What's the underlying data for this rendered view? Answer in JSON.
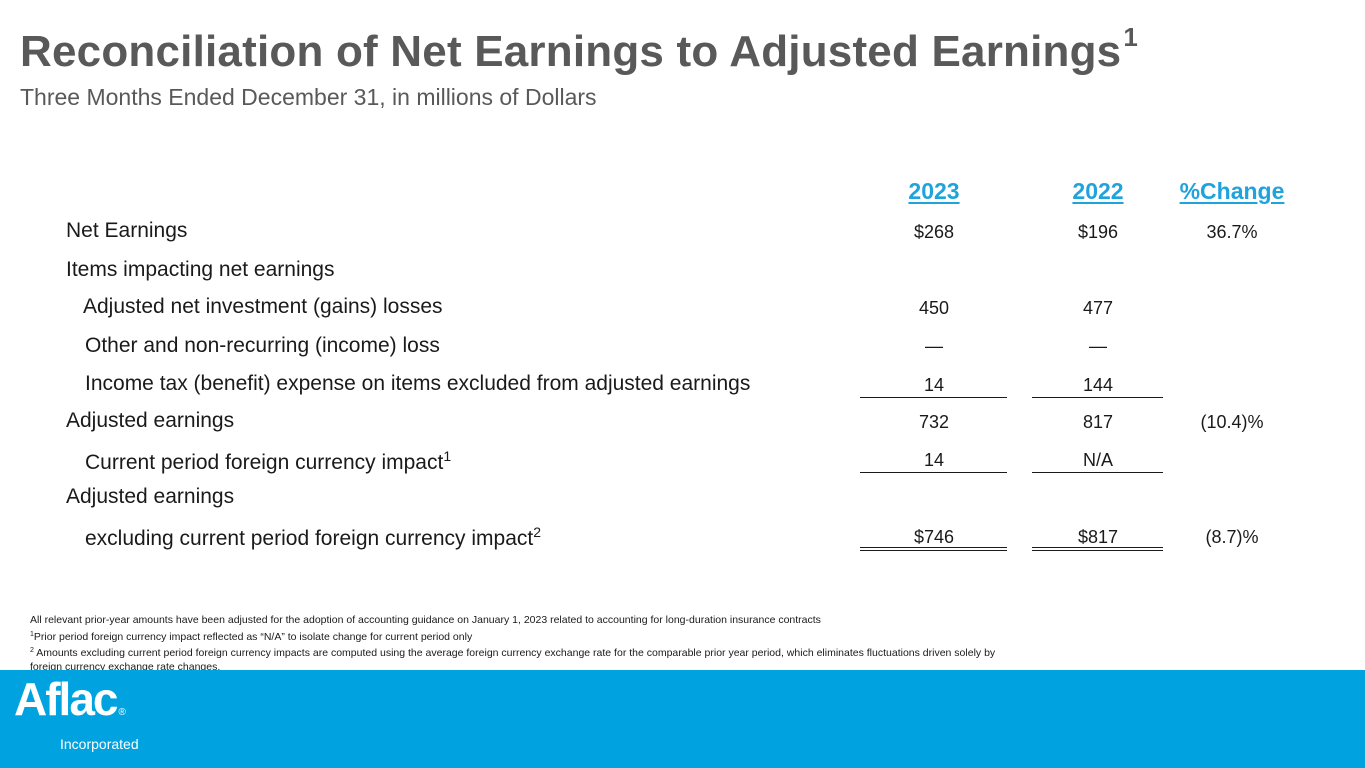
{
  "header": {
    "title": "Reconciliation of Net Earnings to Adjusted Earnings",
    "title_superscript": "1",
    "subtitle": "Three Months Ended December 31, in millions of Dollars"
  },
  "table": {
    "columns": [
      "2023",
      "2022",
      "%Change"
    ],
    "rows": [
      {
        "label": "Net Earnings",
        "values": [
          "$268",
          "$196",
          "36.7%"
        ]
      },
      {
        "label": "Items impacting net earnings",
        "values": [
          "",
          "",
          ""
        ]
      },
      {
        "label": "Adjusted net investment (gains) losses",
        "values": [
          "450",
          "477",
          ""
        ]
      },
      {
        "label": "Other and non-recurring (income) loss",
        "values": [
          "—",
          "—",
          ""
        ]
      },
      {
        "label": "Income tax (benefit) expense on items excluded from adjusted earnings",
        "values": [
          "14",
          "144",
          ""
        ]
      },
      {
        "label": "Adjusted earnings",
        "values": [
          "732",
          "817",
          "(10.4)%"
        ]
      },
      {
        "label": "Current period foreign currency impact",
        "label_sup": "1",
        "values": [
          "14",
          "N/A",
          ""
        ]
      },
      {
        "label": "Adjusted earnings",
        "values": [
          "",
          "",
          ""
        ]
      },
      {
        "label": "excluding current period foreign currency impact",
        "label_sup": "2",
        "values": [
          "$746",
          "$817",
          "(8.7)%"
        ]
      }
    ]
  },
  "footnotes": {
    "general": "All relevant prior-year amounts have been adjusted for the adoption of accounting guidance on January 1, 2023 related to accounting for long-duration insurance contracts",
    "note1_marker": "1",
    "note1": "Prior period foreign currency impact reflected as “N/A” to isolate change for current period only",
    "note2_marker": "2",
    "note2": " Amounts excluding current period foreign currency impacts are computed using the average foreign currency exchange rate for the comparable prior year period, which eliminates fluctuations driven solely by foreign currency exchange rate changes."
  },
  "brand": {
    "logo_text": "Aflac",
    "logo_mark": "®",
    "logo_subtext": "Incorporated",
    "footer_color": "#00a3e0",
    "accent_color": "#1fa3dd"
  }
}
